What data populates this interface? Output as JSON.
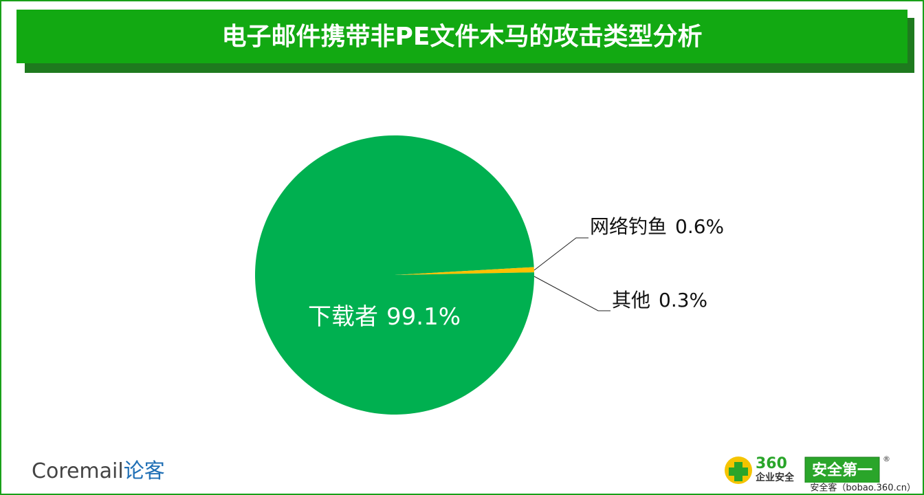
{
  "chart_data": {
    "type": "pie",
    "title": "电子邮件携带非PE文件木马的攻击类型分析",
    "categories": [
      "下载者",
      "网络钓鱼",
      "其他"
    ],
    "values": [
      99.1,
      0.6,
      0.3
    ],
    "value_labels": [
      "99.1%",
      "0.6%",
      "0.3%"
    ],
    "colors": [
      "#00b050",
      "#ffc000",
      "#00b050"
    ]
  },
  "branding": {
    "coremail": "Coremail",
    "coremail_cn": "论客",
    "brand_360": "360",
    "brand_360_sub": "企业安全",
    "slogan": "安全第一",
    "registered": "®",
    "source": "安全客（bobao.360.cn）"
  }
}
